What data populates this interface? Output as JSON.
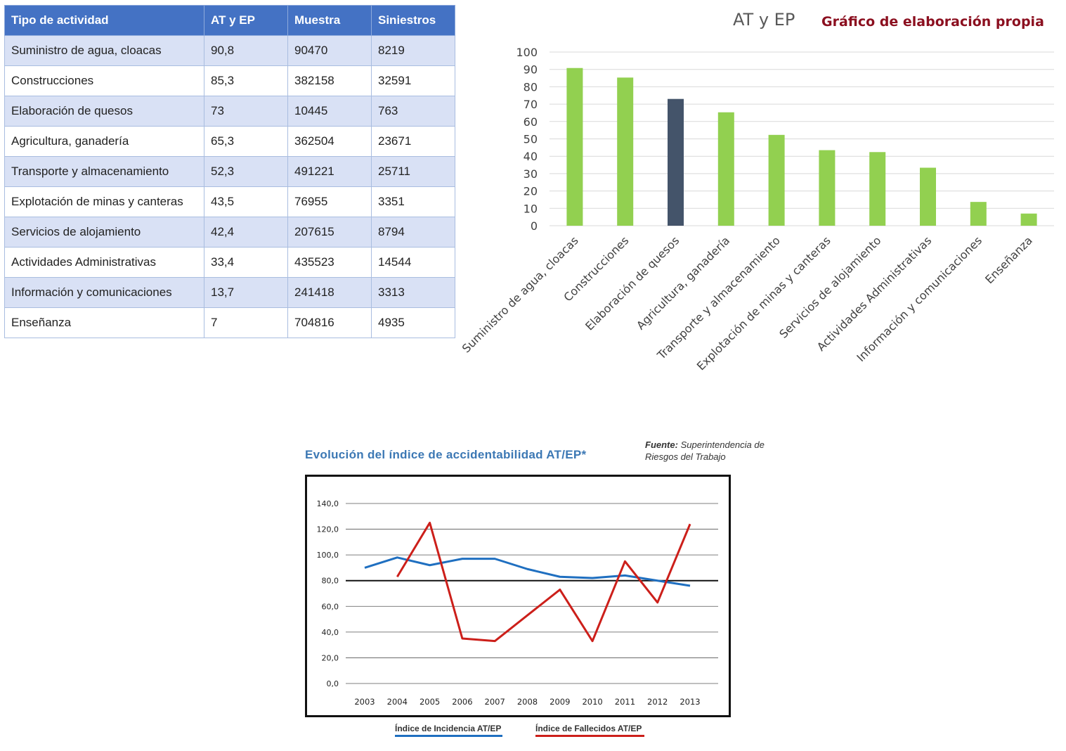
{
  "table": {
    "headers": [
      "Tipo de actividad",
      "AT y EP",
      "Muestra",
      "Siniestros"
    ],
    "rows": [
      [
        "Suministro de agua, cloacas",
        "90,8",
        "90470",
        "8219"
      ],
      [
        "Construcciones",
        "85,3",
        "382158",
        "32591"
      ],
      [
        "Elaboración de quesos",
        "73",
        "10445",
        "763"
      ],
      [
        "Agricultura, ganadería",
        "65,3",
        "362504",
        "23671"
      ],
      [
        "Transporte y almacenamiento",
        "52,3",
        "491221",
        "25711"
      ],
      [
        "Explotación de minas y canteras",
        "43,5",
        "76955",
        "3351"
      ],
      [
        "Servicios de alojamiento",
        "42,4",
        "207615",
        "8794"
      ],
      [
        "Actividades Administrativas",
        "33,4",
        "435523",
        "14544"
      ],
      [
        "Información y comunicaciones",
        "13,7",
        "241418",
        "3313"
      ],
      [
        "Enseñanza",
        "7",
        "704816",
        "4935"
      ]
    ],
    "header_color": "#4472c4",
    "band_color": "#d9e1f5"
  },
  "bar_chart_header": {
    "title": "AT y EP",
    "note": "Gráfico de elaboración propia"
  },
  "line_chart_header": {
    "title": "Evolución del índice de accidentabilidad AT/EP*",
    "source_label": "Fuente:",
    "source_text": "Superintendencia de Riesgos del Trabajo"
  },
  "chart_data": [
    {
      "type": "bar",
      "title": "AT y EP",
      "categories": [
        "Suministro de agua, cloacas",
        "Construcciones",
        "Elaboración de quesos",
        "Agricultura, ganadería",
        "Transporte y almacenamiento",
        "Explotación de minas y canteras",
        "Servicios de alojamiento",
        "Actividades Administrativas",
        "Información y comunicaciones",
        "Enseñanza"
      ],
      "values": [
        90.8,
        85.3,
        73,
        65.3,
        52.3,
        43.5,
        42.4,
        33.4,
        13.7,
        7
      ],
      "ylim": [
        0,
        100
      ],
      "yticks": [
        0,
        10,
        20,
        30,
        40,
        50,
        60,
        70,
        80,
        90,
        100
      ],
      "grid": true,
      "colors": {
        "default": "#92d050",
        "highlight": "#44546a"
      },
      "highlight_index": 2
    },
    {
      "type": "line",
      "x": [
        "2003",
        "2004",
        "2005",
        "2006",
        "2007",
        "2008",
        "2009",
        "2010",
        "2011",
        "2012",
        "2013"
      ],
      "yticks": [
        "0,0",
        "20,0",
        "40,0",
        "60,0",
        "80,0",
        "100,0",
        "120,0",
        "140,0"
      ],
      "ylim": [
        0,
        140
      ],
      "grid": true,
      "series": [
        {
          "name": "Índice de Incidencia AT/EP",
          "color": "#1f6fc0",
          "values": [
            90,
            98,
            92,
            97,
            97,
            89,
            83,
            82,
            84,
            80,
            76
          ]
        },
        {
          "name": "Índice de Fallecidos AT/EP",
          "color": "#cc1f1a",
          "values": [
            null,
            83,
            125,
            35,
            33,
            53,
            73,
            33,
            95,
            63,
            124
          ]
        }
      ]
    }
  ]
}
